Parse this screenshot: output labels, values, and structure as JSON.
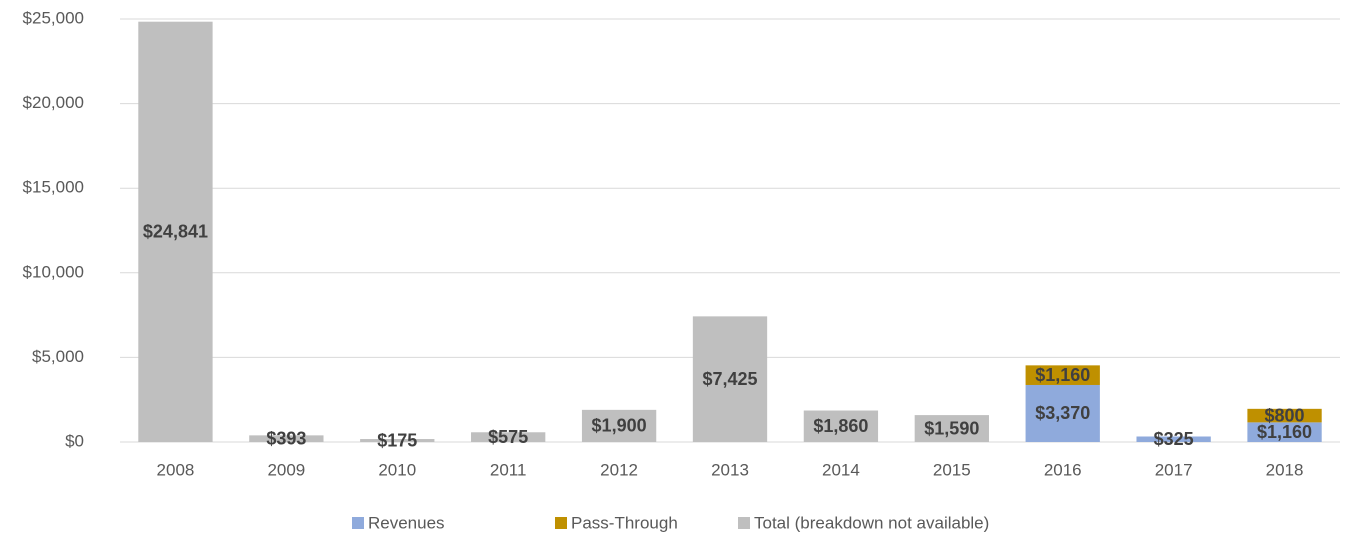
{
  "chart_data": {
    "type": "stacked-bar",
    "categories": [
      "2008",
      "2009",
      "2010",
      "2011",
      "2012",
      "2013",
      "2014",
      "2015",
      "2016",
      "2017",
      "2018"
    ],
    "series": [
      {
        "name": "Revenues",
        "color": "#8faadc",
        "values": [
          null,
          null,
          null,
          null,
          null,
          null,
          null,
          null,
          3370,
          325,
          1160
        ],
        "value_labels": [
          null,
          null,
          null,
          null,
          null,
          null,
          null,
          null,
          "$3,370",
          "$325",
          "$1,160"
        ]
      },
      {
        "name": "Pass-Through",
        "color": "#bf9000",
        "values": [
          null,
          null,
          null,
          null,
          null,
          null,
          null,
          null,
          1160,
          null,
          800
        ],
        "value_labels": [
          null,
          null,
          null,
          null,
          null,
          null,
          null,
          null,
          "$1,160",
          null,
          "$800"
        ]
      },
      {
        "name": "Total (breakdown not available)",
        "color": "#bfbfbf",
        "values": [
          24841,
          393,
          175,
          575,
          1900,
          7425,
          1860,
          1590,
          null,
          null,
          null
        ],
        "value_labels": [
          "$24,841",
          "$393",
          "$175",
          "$575",
          "$1,900",
          "$7,425",
          "$1,860",
          "$1,590",
          null,
          null,
          null
        ]
      }
    ],
    "ylim": [
      0,
      25000
    ],
    "yticks": [
      {
        "value": 0,
        "label": "$0"
      },
      {
        "value": 5000,
        "label": "$5,000"
      },
      {
        "value": 10000,
        "label": "$10,000"
      },
      {
        "value": 15000,
        "label": "$15,000"
      },
      {
        "value": 20000,
        "label": "$20,000"
      },
      {
        "value": 25000,
        "label": "$25,000"
      }
    ],
    "grid": true,
    "legend": "bottom"
  }
}
